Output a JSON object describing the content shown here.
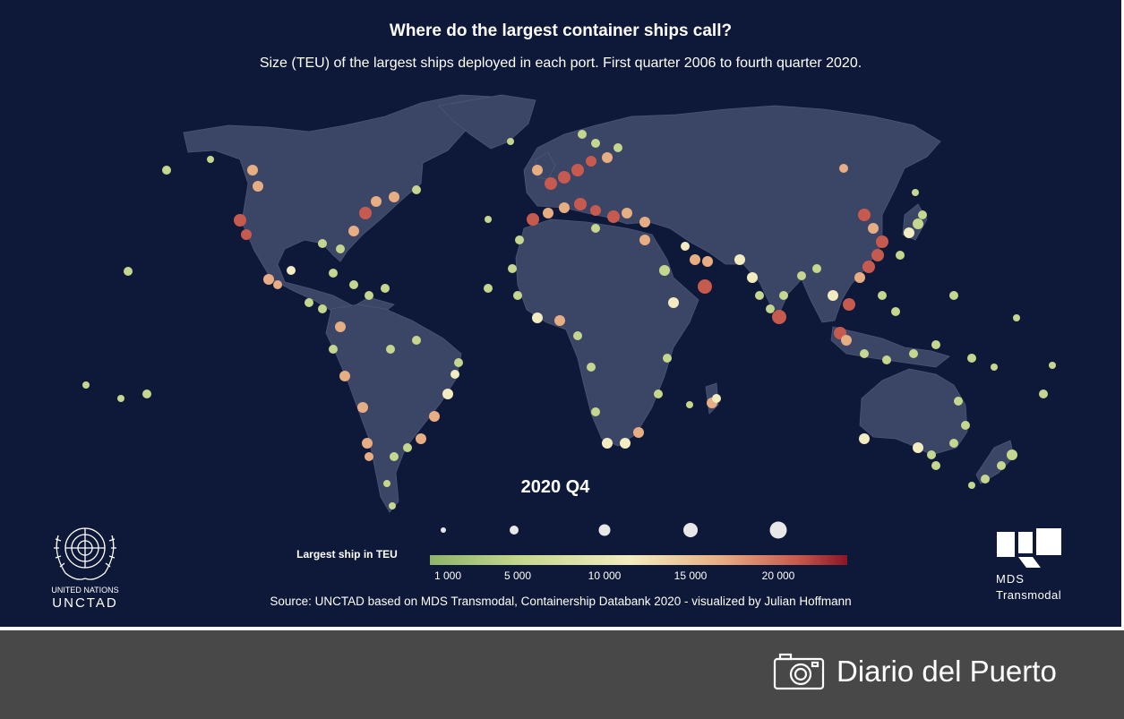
{
  "title": "Where do the largest container ships call?",
  "subtitle": "Size (TEU) of the largest ships deployed in each port. First quarter 2006 to fourth quarter 2020.",
  "period_label": "2020 Q4",
  "legend": {
    "title": "Largest ship in TEU",
    "ticks": [
      "1 000",
      "5 000",
      "10 000",
      "15 000",
      "20 000"
    ],
    "tick_values": [
      1000,
      5000,
      10000,
      15000,
      20000
    ],
    "max_value": 24000,
    "gradient_colors": [
      "#8eb46a",
      "#c5d78e",
      "#f3ecc0",
      "#e7ad83",
      "#c75a4e",
      "#8b1526"
    ]
  },
  "source": "Source: UNCTAD based on MDS Transmodal, Containership Databank 2020 - visualized by Julian Hoffmann",
  "logos": {
    "un_line1": "UNITED NATIONS",
    "un_line2": "UNCTAD",
    "mds_line1": "MDS",
    "mds_line2": "Transmodal"
  },
  "footer": {
    "credit": "Diario del Puerto",
    "icon": "camera-icon"
  },
  "colors": {
    "background": "#0e1838",
    "land": "#3b4566",
    "footer": "#484848"
  }
}
